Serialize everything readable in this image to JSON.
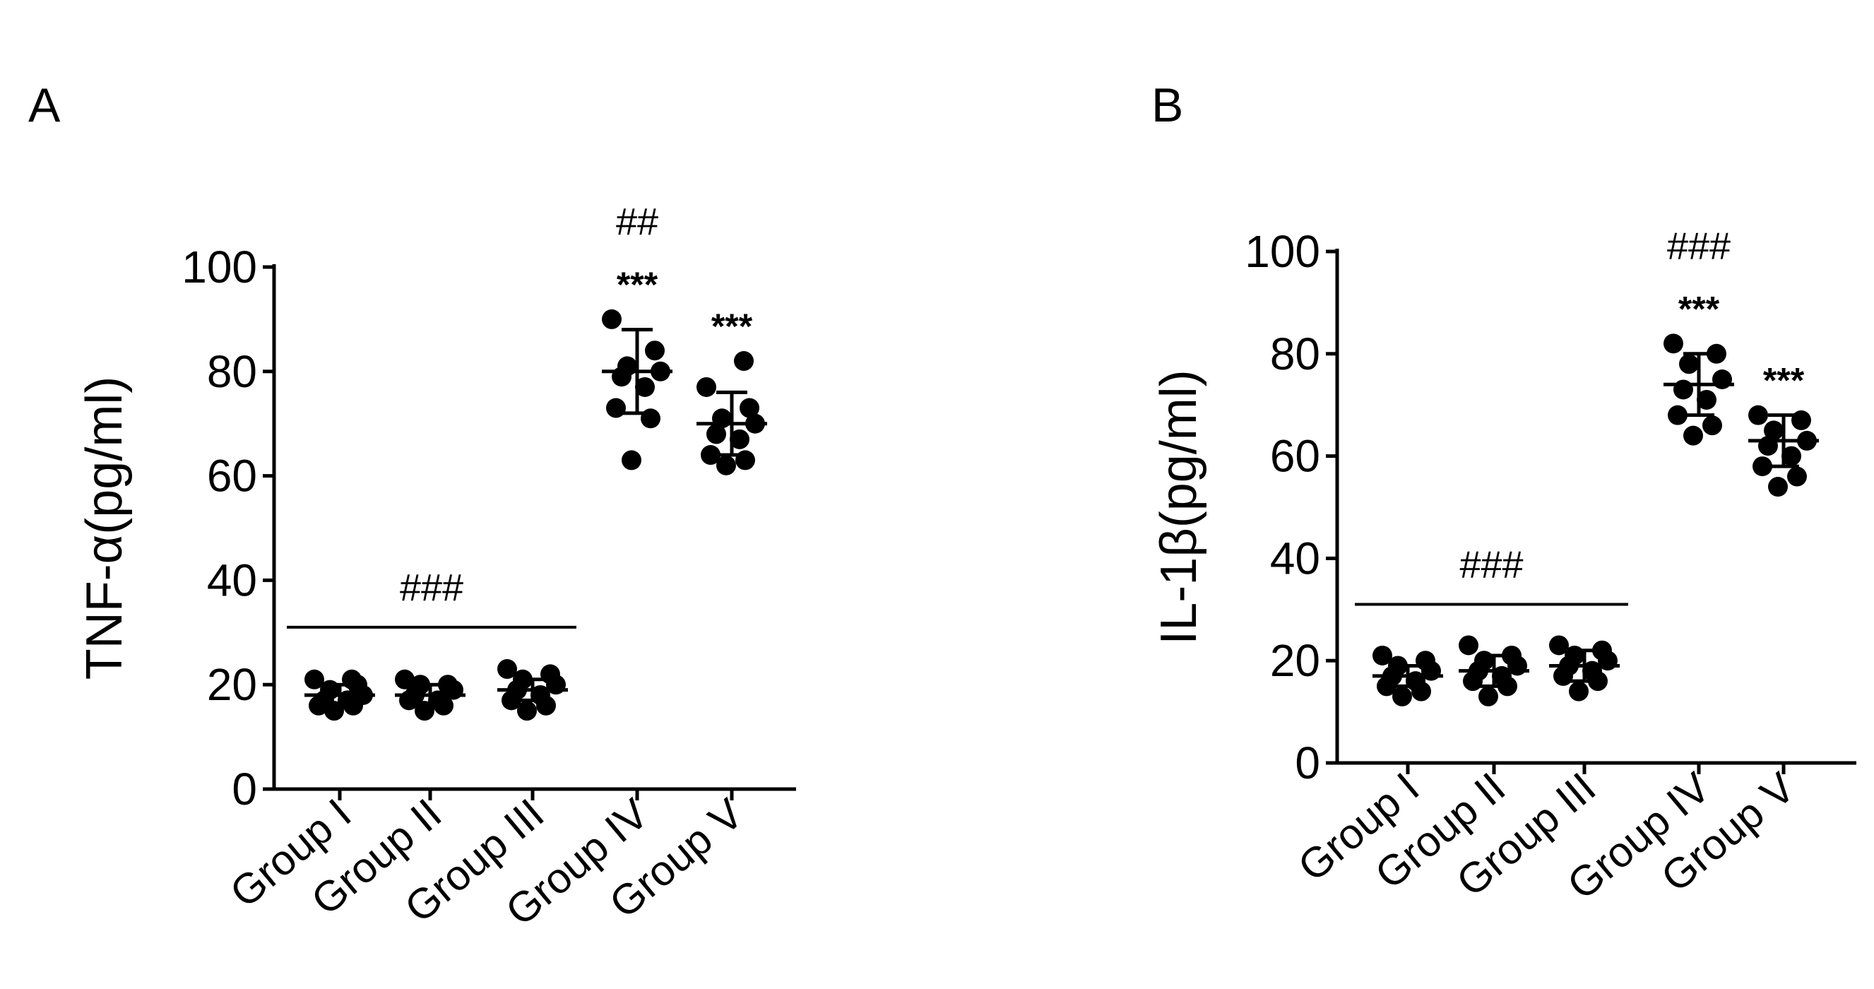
{
  "colors": {
    "ink": "#000000",
    "background": "#ffffff"
  },
  "chart_data": [
    {
      "panel": "A",
      "type": "scatter",
      "ylabel": "TNF-α(pg/ml)",
      "ylim": [
        0,
        100
      ],
      "yticks": [
        0,
        20,
        40,
        60,
        80,
        100
      ],
      "categories": [
        "Group I",
        "Group II",
        "Group III",
        "Group IV",
        "Group V"
      ],
      "points": [
        [
          15,
          16,
          16,
          17,
          17,
          18,
          19,
          20,
          21,
          21
        ],
        [
          15,
          16,
          17,
          17,
          18,
          19,
          20,
          20,
          21
        ],
        [
          15,
          16,
          17,
          18,
          19,
          20,
          21,
          22,
          23
        ],
        [
          63,
          71,
          73,
          77,
          79,
          80,
          81,
          84,
          90
        ],
        [
          62,
          63,
          64,
          67,
          68,
          70,
          71,
          73,
          77,
          82
        ]
      ],
      "mean": [
        18,
        18,
        19,
        80,
        70
      ],
      "sd": [
        2,
        2,
        2,
        8,
        6
      ],
      "bracket": {
        "from": "Group I",
        "to": "Group III",
        "y": 31,
        "label": "###"
      },
      "annotations": [
        {
          "category": "Group IV",
          "lines": [
            "##",
            "***"
          ]
        },
        {
          "category": "Group V",
          "lines": [
            "***"
          ]
        }
      ]
    },
    {
      "panel": "B",
      "type": "scatter",
      "ylabel": "IL-1β(pg/ml)",
      "ylim": [
        0,
        100
      ],
      "yticks": [
        0,
        20,
        40,
        60,
        80,
        100
      ],
      "categories": [
        "Group I",
        "Group II",
        "Group III",
        "Group IV",
        "Group V"
      ],
      "points": [
        [
          13,
          14,
          15,
          16,
          17,
          18,
          19,
          20,
          21
        ],
        [
          13,
          15,
          16,
          17,
          18,
          19,
          20,
          21,
          23
        ],
        [
          14,
          16,
          17,
          18,
          19,
          20,
          21,
          22,
          23
        ],
        [
          64,
          66,
          68,
          71,
          73,
          75,
          78,
          80,
          82
        ],
        [
          54,
          56,
          58,
          60,
          62,
          63,
          65,
          67,
          68
        ]
      ],
      "mean": [
        17,
        18,
        19,
        74,
        63
      ],
      "sd": [
        2,
        3,
        3,
        6,
        5
      ],
      "bracket": {
        "from": "Group I",
        "to": "Group III",
        "y": 31,
        "label": "###"
      },
      "annotations": [
        {
          "category": "Group IV",
          "lines": [
            "###",
            "***"
          ]
        },
        {
          "category": "Group V",
          "lines": [
            "***"
          ]
        }
      ]
    }
  ]
}
